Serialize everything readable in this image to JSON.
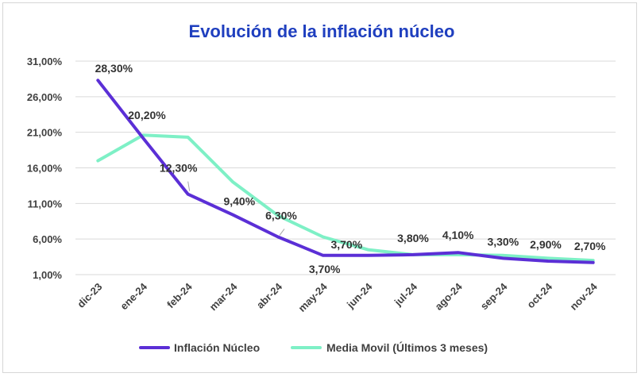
{
  "chart_data": {
    "type": "line",
    "title": "Evolución de la inflación núcleo",
    "categories": [
      "dic-23",
      "ene-24",
      "feb-24",
      "mar-24",
      "abr-24",
      "may-24",
      "jun-24",
      "jul-24",
      "ago-24",
      "sep-24",
      "oct-24",
      "nov-24"
    ],
    "ylim": [
      1,
      31
    ],
    "yticks": [
      1,
      6,
      11,
      16,
      21,
      26,
      31
    ],
    "ytick_labels": [
      "1,00%",
      "6,00%",
      "11,00%",
      "16,00%",
      "21,00%",
      "26,00%",
      "31,00%"
    ],
    "grid": true,
    "legend_position": "bottom",
    "series": [
      {
        "name": "Inflación Núcleo",
        "color": "#5b2fd6",
        "values": [
          28.3,
          20.2,
          12.3,
          9.4,
          6.3,
          3.7,
          3.7,
          3.8,
          4.1,
          3.3,
          2.9,
          2.7
        ]
      },
      {
        "name": "Media Movil (Últimos 3 meses)",
        "color": "#7ef0c6",
        "values": [
          17.0,
          20.6,
          20.3,
          14.0,
          9.3,
          6.3,
          4.5,
          3.8,
          3.8,
          3.7,
          3.3,
          3.0
        ]
      }
    ],
    "data_labels": [
      {
        "text": "28,30%",
        "index": 0,
        "value": 28.3
      },
      {
        "text": "20,20%",
        "index": 1,
        "value": 20.2
      },
      {
        "text": "12,30%",
        "index": 2,
        "value": 12.3
      },
      {
        "text": "9,40%",
        "index": 3,
        "value": 9.4
      },
      {
        "text": "6,30%",
        "index": 4,
        "value": 6.3
      },
      {
        "text": "3,70%",
        "index": 5,
        "value": 3.7
      },
      {
        "text": "3,70%",
        "index": 6,
        "value": 3.7
      },
      {
        "text": "3,80%",
        "index": 7,
        "value": 3.8
      },
      {
        "text": "4,10%",
        "index": 8,
        "value": 4.1
      },
      {
        "text": "3,30%",
        "index": 9,
        "value": 3.3
      },
      {
        "text": "2,90%",
        "index": 10,
        "value": 2.9
      },
      {
        "text": "2,70%",
        "index": 11,
        "value": 2.7
      }
    ]
  }
}
